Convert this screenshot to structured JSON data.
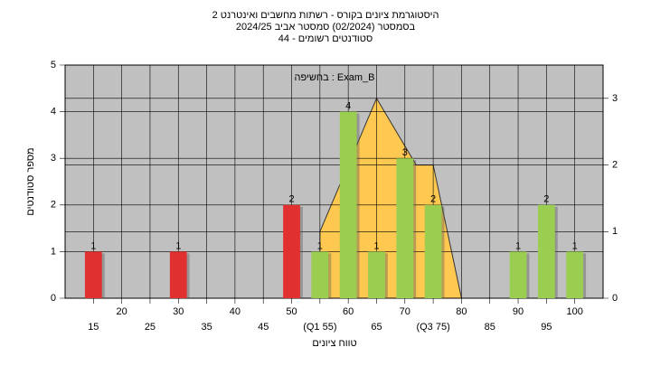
{
  "chart_data": {
    "type": "bar",
    "title": [
      "היסטוגרמת ציונים בקורס - רשתות מחשבים ואינטרנט 2",
      "בסמסטר  (02/2024)  סמסטר אביב 2024/25",
      "סטודנטים רשומים - 44"
    ],
    "annotation": "בחשיפה : Exam_B",
    "x_label": "טווח ציונים",
    "y_label": "מספר סטודנטים",
    "x": [
      15,
      30,
      50,
      55,
      60,
      65,
      70,
      75,
      90,
      95,
      100
    ],
    "values": [
      1,
      1,
      2,
      1,
      4,
      1,
      3,
      2,
      1,
      2,
      1
    ],
    "colors": [
      "#e03030",
      "#e03030",
      "#e03030",
      "#9acd50",
      "#9acd50",
      "#9acd50",
      "#9acd50",
      "#9acd50",
      "#9acd50",
      "#9acd50",
      "#9acd50"
    ],
    "overlay": {
      "type": "area",
      "x": [
        55,
        55,
        65,
        72,
        75,
        80
      ],
      "values": [
        0,
        1,
        3,
        2,
        2,
        0
      ],
      "color": "#ffc850",
      "axis": "y2"
    },
    "xlim": [
      10,
      105
    ],
    "xticks": [
      15,
      20,
      25,
      30,
      35,
      40,
      45,
      50,
      {
        "value": 55,
        "label": "(Q1 55)"
      },
      60,
      65,
      70,
      {
        "value": 75,
        "label": "(Q3 75)"
      },
      80,
      85,
      90,
      95,
      100
    ],
    "ylim": [
      0,
      5
    ],
    "yticks": [
      0,
      1,
      2,
      3,
      4,
      5
    ],
    "y2lim": [
      0,
      3.5
    ],
    "y2ticks": [
      0,
      1,
      2,
      3
    ],
    "grid": true
  }
}
